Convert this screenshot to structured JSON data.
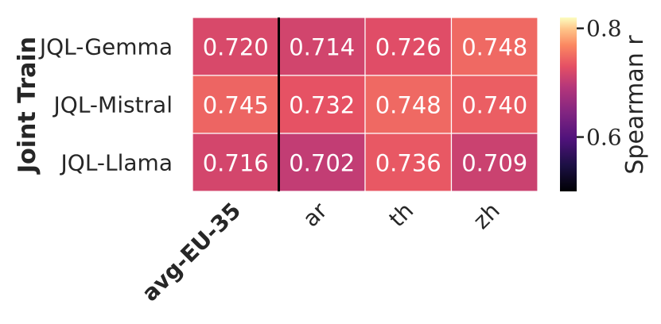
{
  "chart_data": {
    "type": "heatmap",
    "ylabel": "Joint Train",
    "rows": [
      "JQL-Gemma",
      "JQL-Mistral",
      "JQL-Llama"
    ],
    "columns": [
      "avg-EU-35",
      "ar",
      "th",
      "zh"
    ],
    "values": [
      [
        0.72,
        0.714,
        0.726,
        0.748
      ],
      [
        0.745,
        0.732,
        0.748,
        0.74
      ],
      [
        0.716,
        0.702,
        0.736,
        0.709
      ]
    ],
    "value_labels": [
      [
        "0.720",
        "0.714",
        "0.726",
        "0.748"
      ],
      [
        "0.745",
        "0.732",
        "0.748",
        "0.740"
      ],
      [
        "0.716",
        "0.702",
        "0.736",
        "0.709"
      ]
    ],
    "colorbar": {
      "label": "Spearman r",
      "range": [
        0.5,
        0.82
      ],
      "ticks": [
        0.6,
        0.8
      ],
      "tick_labels": [
        "0.6",
        "0.8"
      ],
      "colormap": "magma"
    },
    "separator_after_column": "avg-EU-35",
    "grid": false,
    "legend": "colorbar-right"
  }
}
